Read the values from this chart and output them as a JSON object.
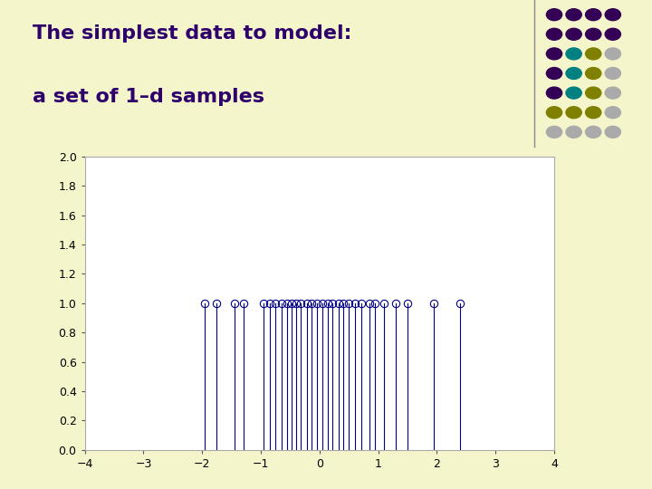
{
  "title_line1": "The simplest data to model:",
  "title_line2": "a set of 1–d samples",
  "title_color": "#2e006c",
  "background_color": "#f5f5cc",
  "plot_background": "#ffffff",
  "plot_border_color": "#aaaaaa",
  "samples": [
    -1.95,
    -1.75,
    -1.45,
    -1.3,
    -0.95,
    -0.85,
    -0.75,
    -0.65,
    -0.55,
    -0.48,
    -0.4,
    -0.32,
    -0.22,
    -0.14,
    -0.05,
    0.05,
    0.14,
    0.22,
    0.32,
    0.4,
    0.5,
    0.6,
    0.72,
    0.85,
    0.95,
    1.1,
    1.3,
    1.5,
    1.95,
    2.4
  ],
  "y_value": 1.0,
  "xlim": [
    -4,
    4
  ],
  "ylim": [
    0,
    2
  ],
  "xticks": [
    -4,
    -3,
    -2,
    -1,
    0,
    1,
    2,
    3,
    4
  ],
  "yticks": [
    0,
    0.2,
    0.4,
    0.6,
    0.8,
    1.0,
    1.2,
    1.4,
    1.6,
    1.8,
    2.0
  ],
  "stem_color": "#00008b",
  "marker_color": "#00008b",
  "title_fontsize": 16,
  "tick_fontsize": 9,
  "figsize": [
    7.2,
    5.4
  ],
  "dot_colors": [
    "#4b0082",
    "#4b0082",
    "#4b0082",
    "#4b0082",
    "#4b0082",
    "#008080",
    "#808000",
    "#aaaaaa"
  ],
  "divider_color": "#888888"
}
